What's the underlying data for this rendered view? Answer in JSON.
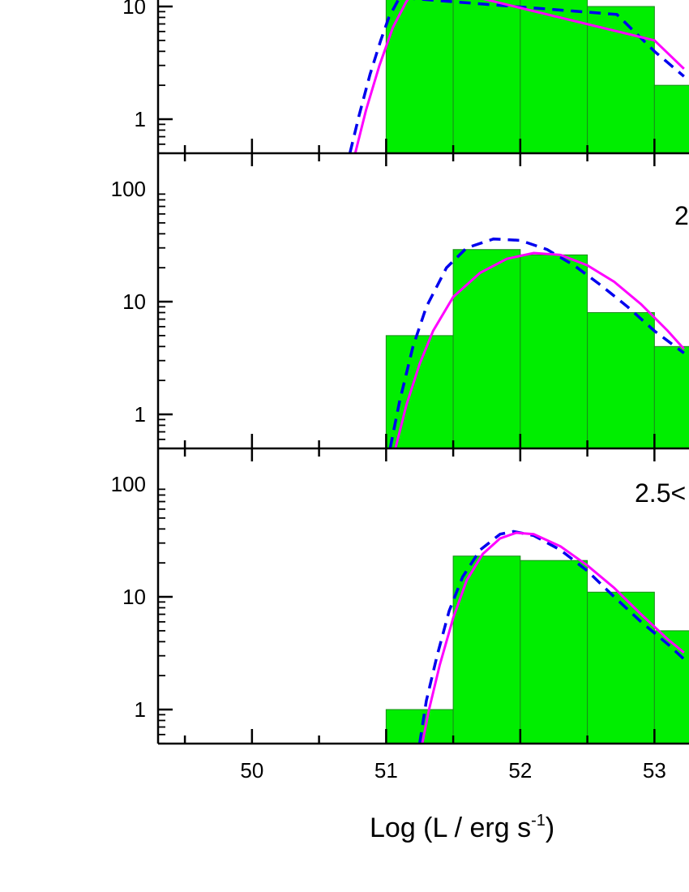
{
  "chart_data": {
    "type": "bar",
    "xlabel_main": "Log (L / erg s",
    "xlabel_sup": "-1",
    "xlabel_close": ")",
    "xlim": [
      49.3,
      53.22
    ],
    "ylim": [
      0.5,
      180
    ],
    "log_y": true,
    "x_ticks": [
      50,
      51,
      52,
      53
    ],
    "x_tick_labels": [
      "50",
      "51",
      "52",
      "53"
    ],
    "y_ticks": [
      1,
      10,
      100
    ],
    "y_tick_labels": [
      "1",
      "10",
      "100"
    ],
    "bin_width": 0.5,
    "colors": {
      "bars": "#00ee00",
      "bar_edge": "#1a8a1a",
      "solid_curve": "#ff00ff",
      "dashed_curve": "#0000ee",
      "axes": "#000000"
    },
    "panels": [
      {
        "label": "",
        "bars": [
          {
            "x0": 51.0,
            "value": 12
          },
          {
            "x0": 51.5,
            "value": 14
          },
          {
            "x0": 52.0,
            "value": 13
          },
          {
            "x0": 52.5,
            "value": 10
          },
          {
            "x0": 53.0,
            "value": 2
          }
        ],
        "solid_curve": [
          [
            50.77,
            0.5
          ],
          [
            50.85,
            1.2
          ],
          [
            50.95,
            3.0
          ],
          [
            51.05,
            6.5
          ],
          [
            51.15,
            11.0
          ],
          [
            51.25,
            16.0
          ],
          [
            53.0,
            5.0
          ],
          [
            53.22,
            2.8
          ]
        ],
        "dashed_curve": [
          [
            50.73,
            0.5
          ],
          [
            50.8,
            1.1
          ],
          [
            50.88,
            2.5
          ],
          [
            50.96,
            5.0
          ],
          [
            51.02,
            8.0
          ],
          [
            51.1,
            12.0
          ],
          [
            52.72,
            8.5
          ],
          [
            53.0,
            4.0
          ],
          [
            53.22,
            2.4
          ]
        ]
      },
      {
        "label": "2",
        "bars": [
          {
            "x0": 51.0,
            "value": 5
          },
          {
            "x0": 51.5,
            "value": 29
          },
          {
            "x0": 52.0,
            "value": 26
          },
          {
            "x0": 52.5,
            "value": 8
          },
          {
            "x0": 53.0,
            "value": 4
          }
        ],
        "solid_curve": [
          [
            51.07,
            0.5
          ],
          [
            51.15,
            1.2
          ],
          [
            51.25,
            2.8
          ],
          [
            51.35,
            5.5
          ],
          [
            51.5,
            11.0
          ],
          [
            51.7,
            18.0
          ],
          [
            51.9,
            24.0
          ],
          [
            52.1,
            27.0
          ],
          [
            52.3,
            26.0
          ],
          [
            52.5,
            21.0
          ],
          [
            52.7,
            15.0
          ],
          [
            52.9,
            9.5
          ],
          [
            53.1,
            5.5
          ],
          [
            53.22,
            3.8
          ]
        ],
        "dashed_curve": [
          [
            51.03,
            0.5
          ],
          [
            51.1,
            1.3
          ],
          [
            51.2,
            4.0
          ],
          [
            51.3,
            9.0
          ],
          [
            51.45,
            20.0
          ],
          [
            51.6,
            30.0
          ],
          [
            51.8,
            36.0
          ],
          [
            52.0,
            35.0
          ],
          [
            52.2,
            29.0
          ],
          [
            52.4,
            21.0
          ],
          [
            52.6,
            14.0
          ],
          [
            52.8,
            9.0
          ],
          [
            53.0,
            5.5
          ],
          [
            53.22,
            3.5
          ]
        ]
      },
      {
        "label": "2.5<",
        "bars": [
          {
            "x0": 51.0,
            "value": 1
          },
          {
            "x0": 51.5,
            "value": 23
          },
          {
            "x0": 52.0,
            "value": 21
          },
          {
            "x0": 52.5,
            "value": 11
          },
          {
            "x0": 53.0,
            "value": 5
          }
        ],
        "solid_curve": [
          [
            51.27,
            0.5
          ],
          [
            51.32,
            1.0
          ],
          [
            51.4,
            2.5
          ],
          [
            51.5,
            6.5
          ],
          [
            51.6,
            14.0
          ],
          [
            51.72,
            24.0
          ],
          [
            51.85,
            33.0
          ],
          [
            51.97,
            37.0
          ],
          [
            52.1,
            36.0
          ],
          [
            52.3,
            28.0
          ],
          [
            52.5,
            19.0
          ],
          [
            52.7,
            12.0
          ],
          [
            52.9,
            7.0
          ],
          [
            53.1,
            4.2
          ],
          [
            53.22,
            3.2
          ]
        ],
        "dashed_curve": [
          [
            51.25,
            0.5
          ],
          [
            51.3,
            1.2
          ],
          [
            51.38,
            3.0
          ],
          [
            51.47,
            7.5
          ],
          [
            51.57,
            15.0
          ],
          [
            51.7,
            26.0
          ],
          [
            51.85,
            36.0
          ],
          [
            51.95,
            38.0
          ],
          [
            52.1,
            35.0
          ],
          [
            52.3,
            26.0
          ],
          [
            52.5,
            17.0
          ],
          [
            52.7,
            10.0
          ],
          [
            52.9,
            6.0
          ],
          [
            53.1,
            3.8
          ],
          [
            53.22,
            2.8
          ]
        ]
      }
    ]
  }
}
